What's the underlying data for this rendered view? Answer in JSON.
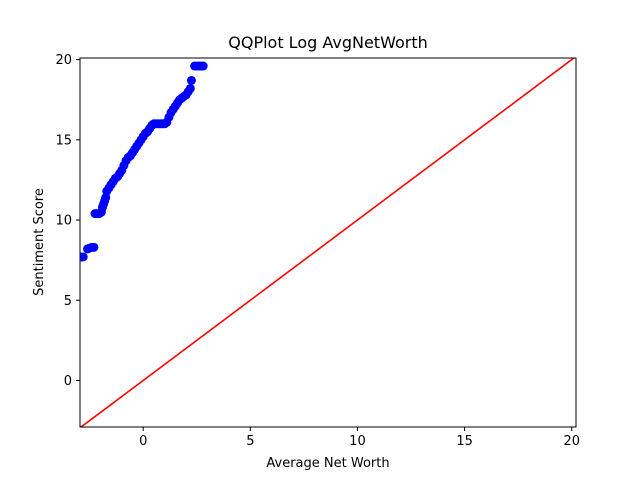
{
  "chart_data": {
    "type": "scatter",
    "title": "QQPlot Log AvgNetWorth",
    "xlabel": "Average Net Worth",
    "ylabel": "Sentiment Score",
    "xlim": [
      -2.95,
      20.2
    ],
    "ylim": [
      -2.9,
      20.1
    ],
    "xticks": [
      0,
      5,
      10,
      15,
      20
    ],
    "yticks": [
      0,
      5,
      10,
      15,
      20
    ],
    "grid": false,
    "reference_line": {
      "color": "#ff0000",
      "from": [
        -2.95,
        -2.95
      ],
      "to": [
        20.2,
        20.2
      ]
    },
    "series": [
      {
        "marker_color": "#0000ff",
        "points": [
          [
            -2.9,
            7.7
          ],
          [
            -2.8,
            7.7
          ],
          [
            -2.6,
            8.2
          ],
          [
            -2.5,
            8.25
          ],
          [
            -2.4,
            8.3
          ],
          [
            -2.3,
            8.3
          ],
          [
            -2.25,
            10.4
          ],
          [
            -2.15,
            10.4
          ],
          [
            -2.05,
            10.4
          ],
          [
            -1.95,
            10.5
          ],
          [
            -1.9,
            10.8
          ],
          [
            -1.85,
            11.0
          ],
          [
            -1.8,
            11.2
          ],
          [
            -1.75,
            11.4
          ],
          [
            -1.7,
            11.8
          ],
          [
            -1.6,
            12.0
          ],
          [
            -1.5,
            12.2
          ],
          [
            -1.4,
            12.4
          ],
          [
            -1.3,
            12.6
          ],
          [
            -1.2,
            12.7
          ],
          [
            -1.1,
            12.9
          ],
          [
            -1.0,
            13.1
          ],
          [
            -0.9,
            13.4
          ],
          [
            -0.8,
            13.7
          ],
          [
            -0.7,
            13.9
          ],
          [
            -0.6,
            14.0
          ],
          [
            -0.5,
            14.2
          ],
          [
            -0.4,
            14.4
          ],
          [
            -0.3,
            14.6
          ],
          [
            -0.2,
            14.8
          ],
          [
            -0.1,
            15.0
          ],
          [
            0.0,
            15.2
          ],
          [
            0.1,
            15.4
          ],
          [
            0.2,
            15.5
          ],
          [
            0.3,
            15.7
          ],
          [
            0.4,
            15.9
          ],
          [
            0.5,
            16.0
          ],
          [
            0.6,
            16.0
          ],
          [
            0.7,
            16.0
          ],
          [
            0.8,
            16.0
          ],
          [
            0.9,
            16.0
          ],
          [
            1.0,
            16.0
          ],
          [
            1.1,
            16.1
          ],
          [
            1.2,
            16.4
          ],
          [
            1.3,
            16.7
          ],
          [
            1.4,
            16.9
          ],
          [
            1.5,
            17.1
          ],
          [
            1.6,
            17.3
          ],
          [
            1.7,
            17.5
          ],
          [
            1.8,
            17.6
          ],
          [
            1.9,
            17.7
          ],
          [
            2.0,
            17.8
          ],
          [
            2.1,
            18.0
          ],
          [
            2.2,
            18.2
          ],
          [
            2.25,
            18.7
          ],
          [
            2.4,
            19.6
          ],
          [
            2.5,
            19.6
          ],
          [
            2.6,
            19.6
          ],
          [
            2.7,
            19.6
          ],
          [
            2.8,
            19.6
          ]
        ]
      }
    ]
  }
}
